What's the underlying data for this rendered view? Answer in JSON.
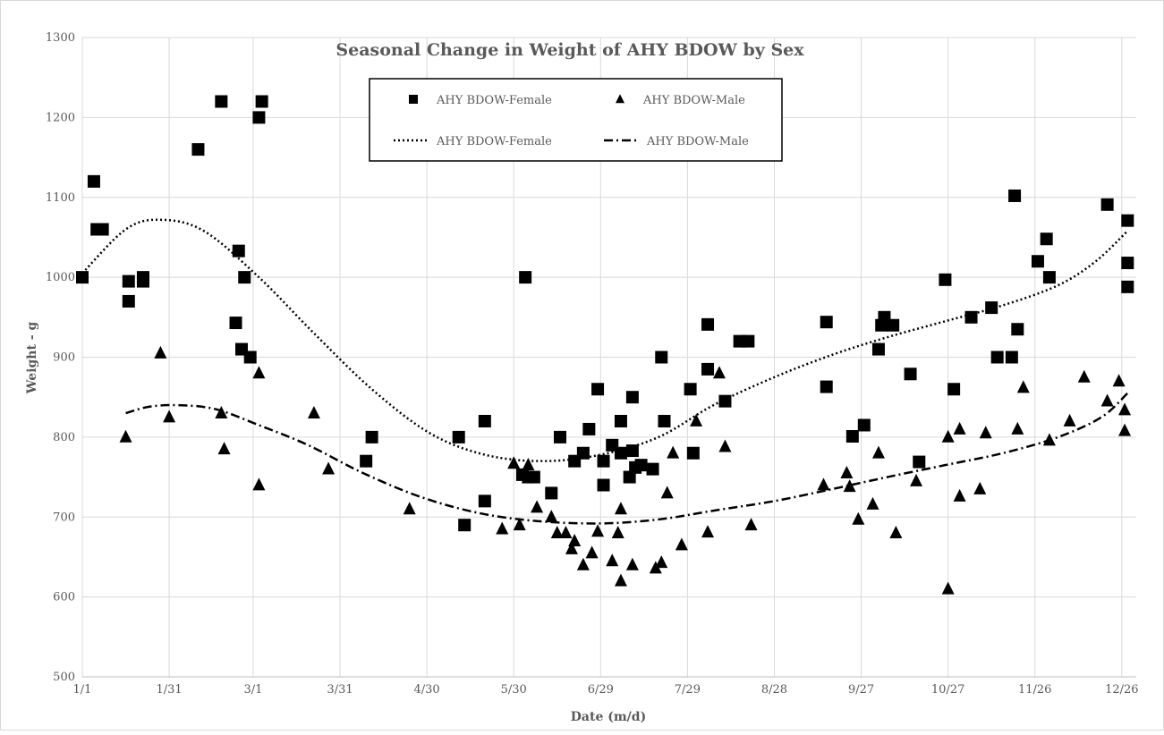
{
  "chart_data": {
    "type": "scatter",
    "title": "Seasonal Change in Weight of AHY BDOW by Sex",
    "xlabel": "Date (m/d)",
    "ylabel": "Weight - g",
    "x_unit": "date (m/d)",
    "xlim": [
      "1/1",
      "12/31"
    ],
    "ylim": [
      500,
      1300
    ],
    "y_ticks": [
      500,
      600,
      700,
      800,
      900,
      1000,
      1100,
      1200,
      1300
    ],
    "x_ticks": [
      "1/1",
      "1/31",
      "3/1",
      "3/31",
      "4/30",
      "5/30",
      "6/29",
      "7/29",
      "8/28",
      "9/27",
      "10/27",
      "11/26",
      "12/26"
    ],
    "grid": true,
    "legend_position": "top-center",
    "legend": [
      "AHY BDOW-Female",
      "AHY BDOW-Male",
      "AHY BDOW-Female",
      "AHY BDOW-Male"
    ],
    "series": [
      {
        "name": "AHY BDOW-Female",
        "marker": "square",
        "points": [
          [
            "1/1",
            1000
          ],
          [
            "1/5",
            1120
          ],
          [
            "1/6",
            1060
          ],
          [
            "1/8",
            1060
          ],
          [
            "1/17",
            995
          ],
          [
            "1/17",
            970
          ],
          [
            "1/22",
            1000
          ],
          [
            "1/22",
            995
          ],
          [
            "2/10",
            1160
          ],
          [
            "2/18",
            1220
          ],
          [
            "2/23",
            943
          ],
          [
            "2/24",
            1033
          ],
          [
            "2/25",
            910
          ],
          [
            "2/26",
            1000
          ],
          [
            "2/28",
            900
          ],
          [
            "3/3",
            1200
          ],
          [
            "3/4",
            1220
          ],
          [
            "4/9",
            770
          ],
          [
            "4/11",
            800
          ],
          [
            "5/11",
            800
          ],
          [
            "5/13",
            690
          ],
          [
            "5/20",
            820
          ],
          [
            "5/20",
            720
          ],
          [
            "6/2",
            753
          ],
          [
            "6/3",
            1000
          ],
          [
            "6/4",
            750
          ],
          [
            "6/6",
            750
          ],
          [
            "6/12",
            730
          ],
          [
            "6/15",
            800
          ],
          [
            "6/20",
            770
          ],
          [
            "6/23",
            780
          ],
          [
            "6/25",
            810
          ],
          [
            "6/28",
            860
          ],
          [
            "6/30",
            740
          ],
          [
            "6/30",
            770
          ],
          [
            "7/3",
            790
          ],
          [
            "7/6",
            780
          ],
          [
            "7/6",
            820
          ],
          [
            "7/9",
            750
          ],
          [
            "7/10",
            850
          ],
          [
            "7/10",
            783
          ],
          [
            "7/11",
            762
          ],
          [
            "7/13",
            765
          ],
          [
            "7/17",
            760
          ],
          [
            "7/20",
            900
          ],
          [
            "7/21",
            820
          ],
          [
            "7/30",
            860
          ],
          [
            "7/31",
            780
          ],
          [
            "8/5",
            885
          ],
          [
            "8/5",
            941
          ],
          [
            "8/11",
            845
          ],
          [
            "8/16",
            920
          ],
          [
            "8/19",
            920
          ],
          [
            "9/15",
            944
          ],
          [
            "9/15",
            863
          ],
          [
            "9/24",
            801
          ],
          [
            "9/28",
            815
          ],
          [
            "10/3",
            910
          ],
          [
            "10/4",
            940
          ],
          [
            "10/5",
            950
          ],
          [
            "10/8",
            940
          ],
          [
            "10/14",
            879
          ],
          [
            "10/17",
            769
          ],
          [
            "10/26",
            997
          ],
          [
            "10/29",
            860
          ],
          [
            "11/4",
            950
          ],
          [
            "11/11",
            962
          ],
          [
            "11/13",
            900
          ],
          [
            "11/18",
            900
          ],
          [
            "11/19",
            1102
          ],
          [
            "11/20",
            935
          ],
          [
            "11/27",
            1020
          ],
          [
            "11/30",
            1048
          ],
          [
            "12/1",
            1000
          ],
          [
            "12/21",
            1091
          ],
          [
            "12/28",
            1071
          ],
          [
            "12/28",
            1018
          ],
          [
            "12/28",
            988
          ]
        ]
      },
      {
        "name": "AHY BDOW-Male",
        "marker": "triangle",
        "points": [
          [
            "1/16",
            800
          ],
          [
            "1/28",
            905
          ],
          [
            "1/31",
            825
          ],
          [
            "2/18",
            830
          ],
          [
            "2/19",
            785
          ],
          [
            "3/3",
            880
          ],
          [
            "3/3",
            740
          ],
          [
            "3/22",
            830
          ],
          [
            "3/27",
            760
          ],
          [
            "4/24",
            710
          ],
          [
            "5/26",
            685
          ],
          [
            "5/30",
            767
          ],
          [
            "6/1",
            690
          ],
          [
            "6/4",
            765
          ],
          [
            "6/7",
            712
          ],
          [
            "6/12",
            700
          ],
          [
            "6/14",
            680
          ],
          [
            "6/17",
            680
          ],
          [
            "6/19",
            660
          ],
          [
            "6/20",
            670
          ],
          [
            "6/23",
            640
          ],
          [
            "6/26",
            655
          ],
          [
            "6/28",
            682
          ],
          [
            "7/3",
            645
          ],
          [
            "7/5",
            680
          ],
          [
            "7/6",
            710
          ],
          [
            "7/6",
            620
          ],
          [
            "7/10",
            640
          ],
          [
            "7/18",
            636
          ],
          [
            "7/20",
            643
          ],
          [
            "7/22",
            730
          ],
          [
            "7/24",
            780
          ],
          [
            "7/27",
            665
          ],
          [
            "8/1",
            820
          ],
          [
            "8/5",
            681
          ],
          [
            "8/9",
            880
          ],
          [
            "8/11",
            788
          ],
          [
            "8/20",
            690
          ],
          [
            "9/14",
            740
          ],
          [
            "9/22",
            755
          ],
          [
            "9/23",
            738
          ],
          [
            "9/26",
            697
          ],
          [
            "10/1",
            716
          ],
          [
            "10/3",
            780
          ],
          [
            "10/9",
            680
          ],
          [
            "10/16",
            745
          ],
          [
            "10/27",
            800
          ],
          [
            "10/27",
            610
          ],
          [
            "10/31",
            810
          ],
          [
            "10/31",
            726
          ],
          [
            "11/7",
            735
          ],
          [
            "11/9",
            805
          ],
          [
            "11/20",
            810
          ],
          [
            "11/22",
            862
          ],
          [
            "12/1",
            796
          ],
          [
            "12/8",
            820
          ],
          [
            "12/13",
            875
          ],
          [
            "12/21",
            845
          ],
          [
            "12/25",
            870
          ],
          [
            "12/27",
            834
          ],
          [
            "12/27",
            808
          ]
        ]
      },
      {
        "name": "AHY BDOW-Female",
        "line_style": "dotted",
        "points": [
          [
            "1/1",
            1005
          ],
          [
            "1/16",
            1060
          ],
          [
            "1/28",
            1072
          ],
          [
            "2/12",
            1058
          ],
          [
            "3/3",
            1000
          ],
          [
            "3/22",
            930
          ],
          [
            "4/11",
            860
          ],
          [
            "5/1",
            805
          ],
          [
            "5/20",
            778
          ],
          [
            "6/9",
            770
          ],
          [
            "6/29",
            778
          ],
          [
            "7/19",
            800
          ],
          [
            "8/7",
            840
          ],
          [
            "8/28",
            875
          ],
          [
            "9/17",
            903
          ],
          [
            "10/6",
            925
          ],
          [
            "10/26",
            945
          ],
          [
            "11/15",
            965
          ],
          [
            "12/4",
            990
          ],
          [
            "12/17",
            1020
          ],
          [
            "12/28",
            1058
          ]
        ]
      },
      {
        "name": "AHY BDOW-Male",
        "line_style": "dash-dot",
        "points": [
          [
            "1/16",
            830
          ],
          [
            "1/24",
            838
          ],
          [
            "2/3",
            840
          ],
          [
            "2/16",
            835
          ],
          [
            "3/3",
            815
          ],
          [
            "3/20",
            790
          ],
          [
            "4/8",
            755
          ],
          [
            "4/28",
            725
          ],
          [
            "5/18",
            705
          ],
          [
            "6/7",
            695
          ],
          [
            "6/29",
            692
          ],
          [
            "7/19",
            697
          ],
          [
            "8/7",
            708
          ],
          [
            "8/28",
            720
          ],
          [
            "9/17",
            735
          ],
          [
            "10/6",
            750
          ],
          [
            "10/26",
            765
          ],
          [
            "11/15",
            780
          ],
          [
            "12/4",
            800
          ],
          [
            "12/19",
            825
          ],
          [
            "12/28",
            855
          ]
        ]
      }
    ]
  }
}
